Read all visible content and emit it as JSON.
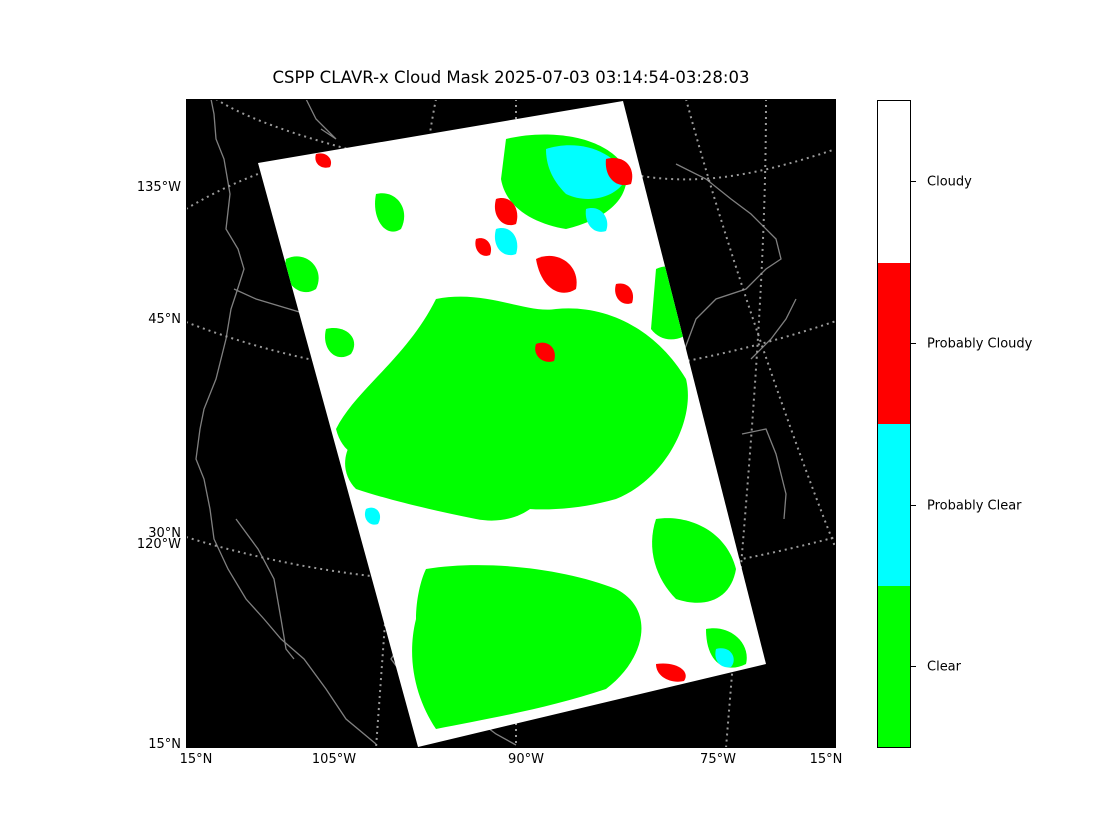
{
  "title": "CSPP CLAVR-x Cloud Mask 2025-07-03 03:14:54-03:28:03",
  "y_labels": [
    "135°W",
    "45°N",
    "30°N",
    "120°W",
    "15°N"
  ],
  "x_labels": [
    "15°N",
    "105°W",
    "90°W",
    "75°W",
    "15°N"
  ],
  "legend": {
    "type": "categorical colorbar",
    "classes": [
      {
        "label": "Cloudy",
        "color": "#ffffff"
      },
      {
        "label": "Probably Cloudy",
        "color": "#ff0000"
      },
      {
        "label": "Probably Clear",
        "color": "#00ffff"
      },
      {
        "label": "Clear",
        "color": "#00ff00"
      }
    ]
  },
  "colors": {
    "background": "#000000",
    "coastline": "#808080",
    "graticule": "#9a9a9a",
    "no_data": "#000000"
  }
}
